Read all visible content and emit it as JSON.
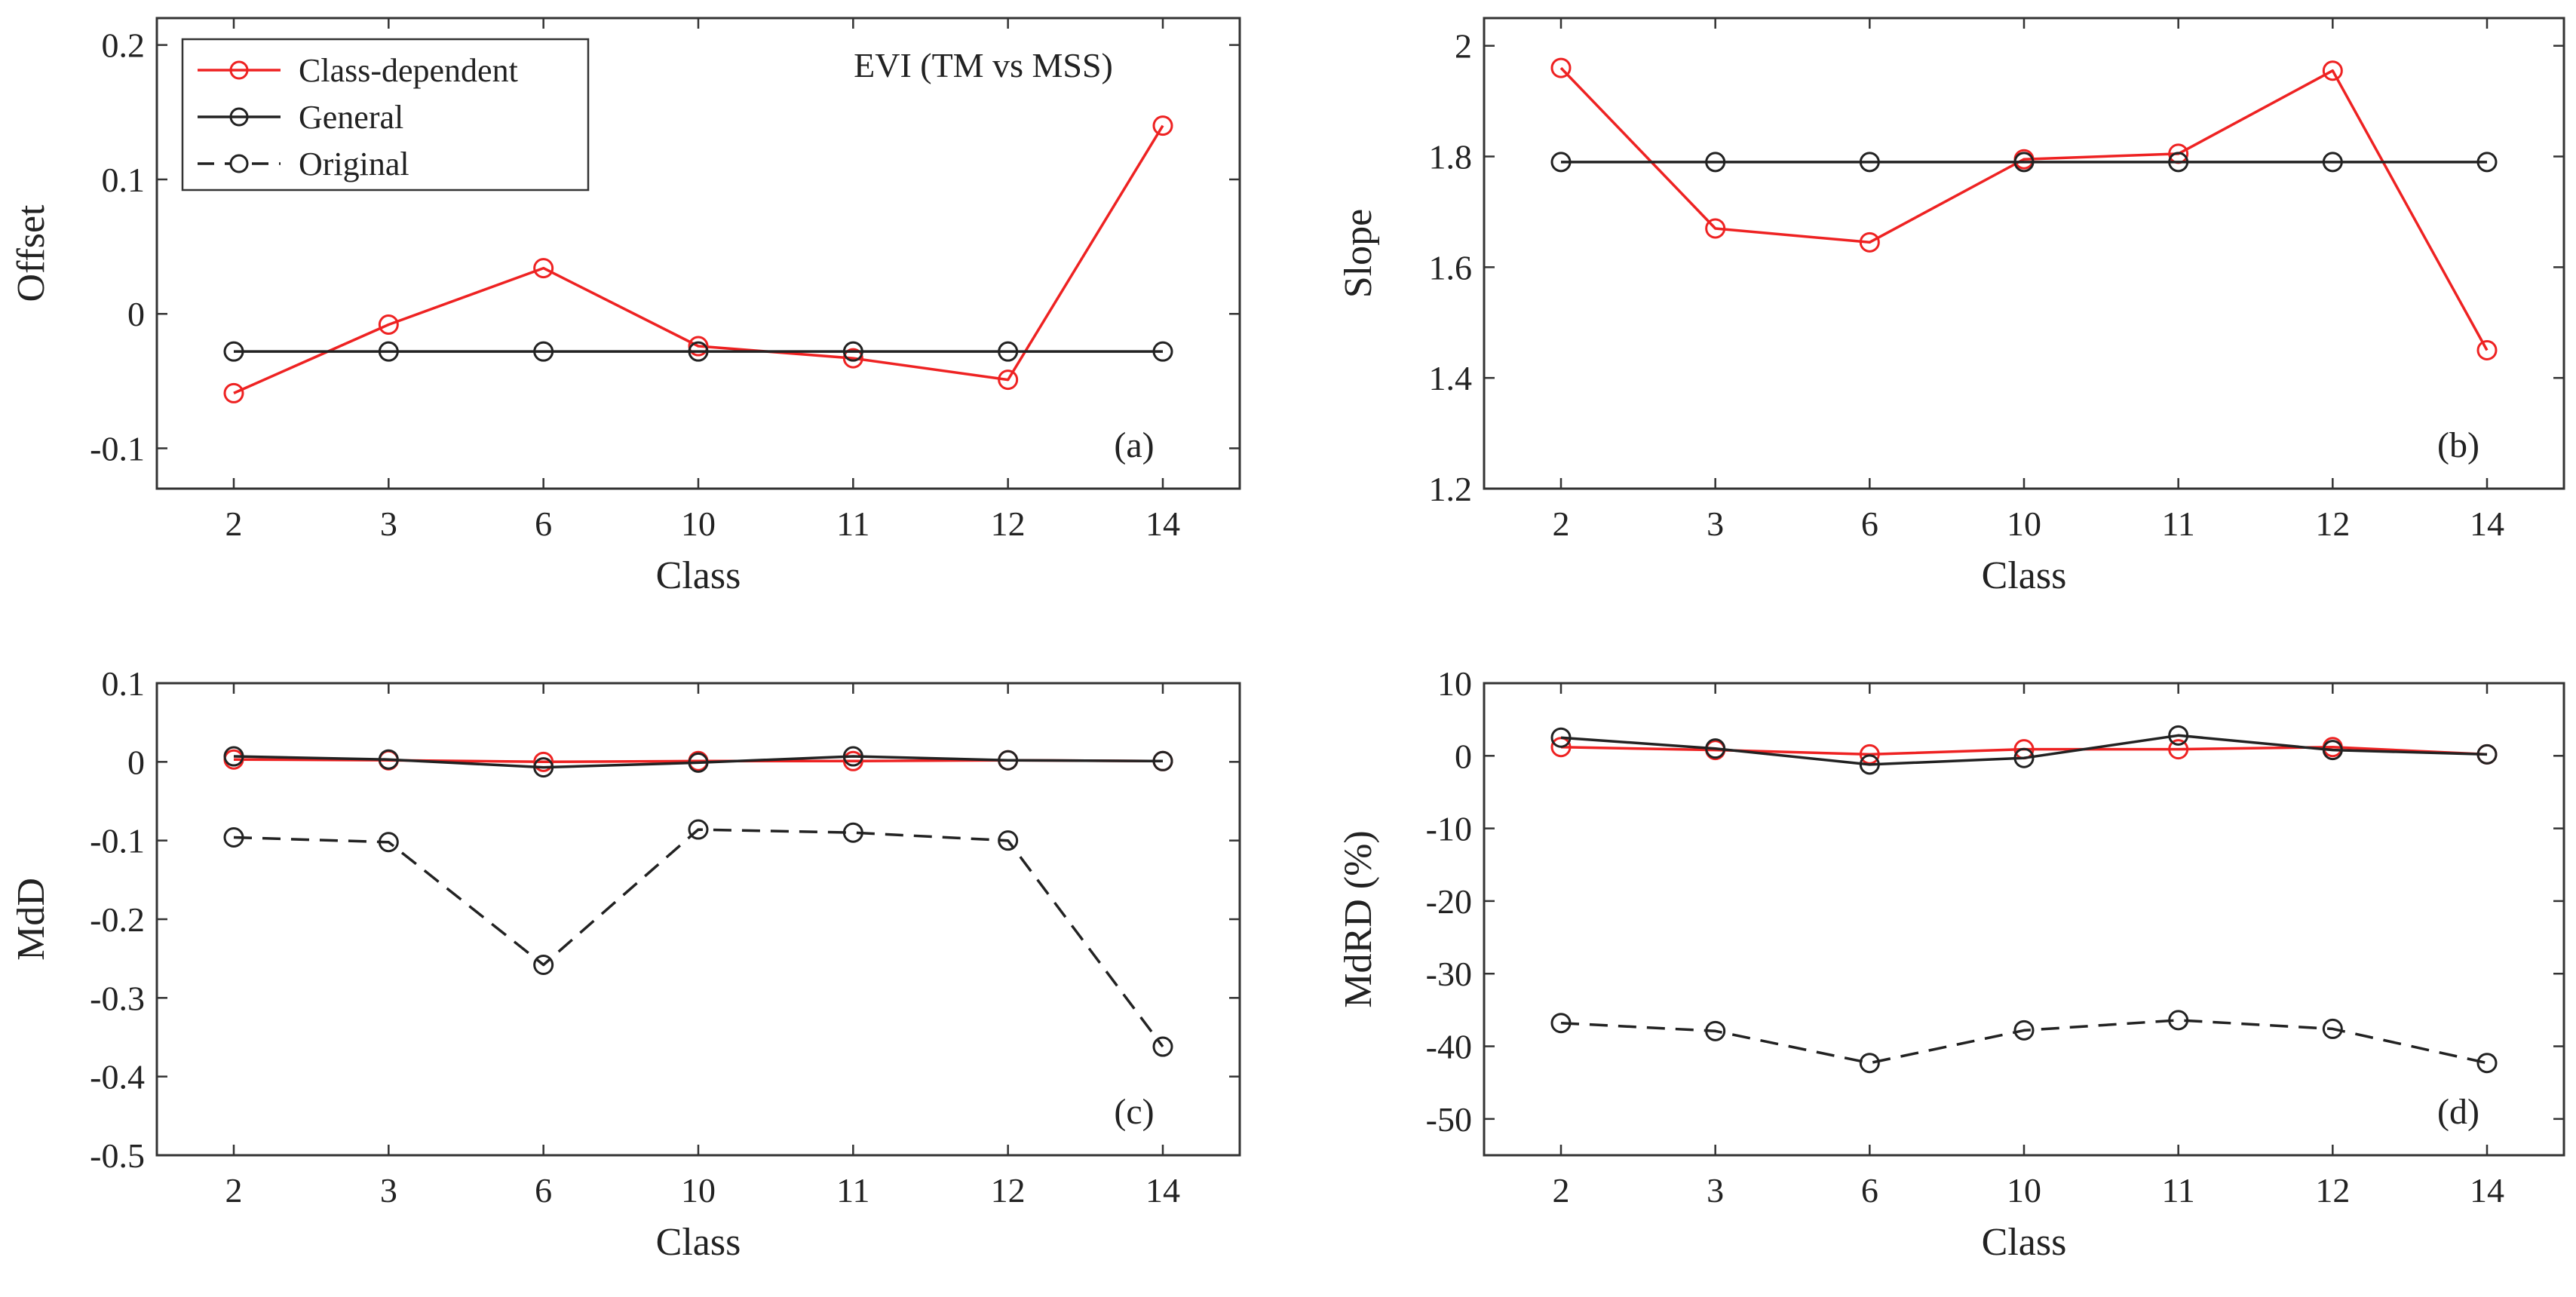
{
  "colors": {
    "class_dependent": "#ee2222",
    "general": "#222222",
    "original": "#222222",
    "axis": "#333333"
  },
  "legend": {
    "entries": [
      {
        "label": "Class-dependent",
        "series": "class_dependent"
      },
      {
        "label": "General",
        "series": "general"
      },
      {
        "label": "Original",
        "series": "original"
      }
    ]
  },
  "chart_data": [
    {
      "id": "a",
      "type": "line",
      "panel_label": "(a)",
      "title": "EVI (TM vs MSS)",
      "xlabel": "Class",
      "ylabel": "Offset",
      "categories": [
        "2",
        "3",
        "6",
        "10",
        "11",
        "12",
        "14"
      ],
      "ylim": [
        -0.13,
        0.22
      ],
      "yticks": [
        -0.1,
        0,
        0.1,
        0.2
      ],
      "ytick_labels": [
        "-0.1",
        "0",
        "0.1",
        "0.2"
      ],
      "series": [
        {
          "name": "Class-dependent",
          "key": "class_dependent",
          "style": "solid",
          "values": [
            -0.059,
            -0.008,
            0.034,
            -0.024,
            -0.033,
            -0.049,
            0.14
          ]
        },
        {
          "name": "General",
          "key": "general",
          "style": "solid",
          "values": [
            -0.028,
            -0.028,
            -0.028,
            -0.028,
            -0.028,
            -0.028,
            -0.028
          ]
        }
      ]
    },
    {
      "id": "b",
      "type": "line",
      "panel_label": "(b)",
      "title": "",
      "xlabel": "Class",
      "ylabel": "Slope",
      "categories": [
        "2",
        "3",
        "6",
        "10",
        "11",
        "12",
        "14"
      ],
      "ylim": [
        1.2,
        2.05
      ],
      "yticks": [
        1.2,
        1.4,
        1.6,
        1.8,
        2.0
      ],
      "ytick_labels": [
        "1.2",
        "1.4",
        "1.6",
        "1.8",
        "2"
      ],
      "series": [
        {
          "name": "Class-dependent",
          "key": "class_dependent",
          "style": "solid",
          "values": [
            1.96,
            1.67,
            1.645,
            1.795,
            1.805,
            1.955,
            1.45
          ]
        },
        {
          "name": "General",
          "key": "general",
          "style": "solid",
          "values": [
            1.79,
            1.79,
            1.79,
            1.79,
            1.79,
            1.79,
            1.79
          ]
        }
      ]
    },
    {
      "id": "c",
      "type": "line",
      "panel_label": "(c)",
      "title": "",
      "xlabel": "Class",
      "ylabel": "MdD",
      "categories": [
        "2",
        "3",
        "6",
        "10",
        "11",
        "12",
        "14"
      ],
      "ylim": [
        -0.5,
        0.1
      ],
      "yticks": [
        -0.5,
        -0.4,
        -0.3,
        -0.2,
        -0.1,
        0,
        0.1
      ],
      "ytick_labels": [
        "-0.5",
        "-0.4",
        "-0.3",
        "-0.2",
        "-0.1",
        "0",
        "0.1"
      ],
      "series": [
        {
          "name": "Class-dependent",
          "key": "class_dependent",
          "style": "solid",
          "values": [
            0.003,
            0.002,
            0.0,
            0.001,
            0.001,
            0.002,
            0.001
          ]
        },
        {
          "name": "General",
          "key": "general",
          "style": "solid",
          "values": [
            0.007,
            0.003,
            -0.007,
            -0.001,
            0.007,
            0.002,
            0.001
          ]
        },
        {
          "name": "Original",
          "key": "original",
          "style": "dashed",
          "values": [
            -0.096,
            -0.102,
            -0.258,
            -0.086,
            -0.09,
            -0.1,
            -0.362
          ]
        }
      ]
    },
    {
      "id": "d",
      "type": "line",
      "panel_label": "(d)",
      "title": "",
      "xlabel": "Class",
      "ylabel": "MdRD (%)",
      "categories": [
        "2",
        "3",
        "6",
        "10",
        "11",
        "12",
        "14"
      ],
      "ylim": [
        -55,
        10
      ],
      "yticks": [
        -50,
        -40,
        -30,
        -20,
        -10,
        0,
        10
      ],
      "ytick_labels": [
        "-50",
        "-40",
        "-30",
        "-20",
        "-10",
        "0",
        "10"
      ],
      "series": [
        {
          "name": "Class-dependent",
          "key": "class_dependent",
          "style": "solid",
          "values": [
            1.2,
            0.8,
            0.2,
            0.9,
            0.9,
            1.2,
            0.2
          ]
        },
        {
          "name": "General",
          "key": "general",
          "style": "solid",
          "values": [
            2.5,
            1.0,
            -1.2,
            -0.3,
            2.8,
            0.8,
            0.2
          ]
        },
        {
          "name": "Original",
          "key": "original",
          "style": "dashed",
          "values": [
            -36.8,
            -37.9,
            -42.3,
            -37.8,
            -36.4,
            -37.6,
            -42.3
          ]
        }
      ]
    }
  ]
}
